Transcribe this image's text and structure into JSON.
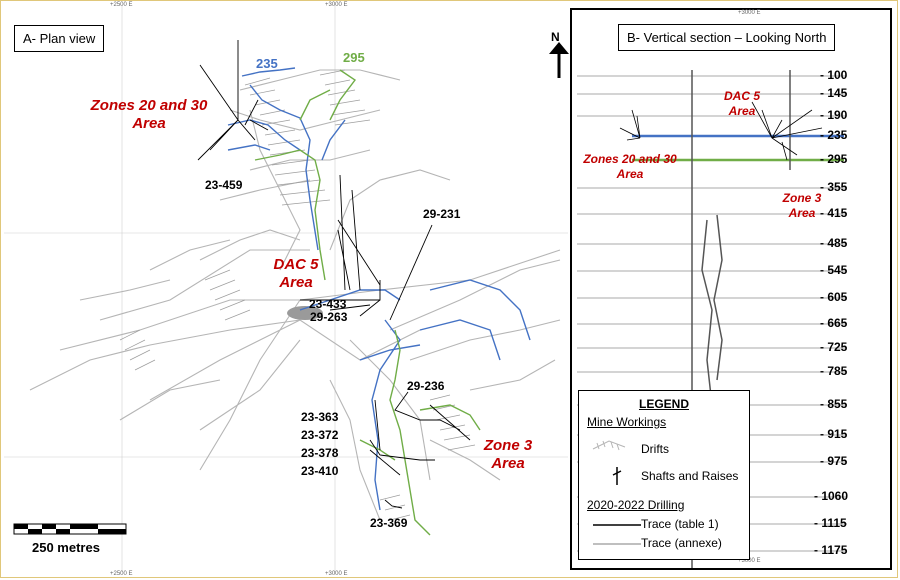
{
  "plan_view": {
    "title": "A- Plan view",
    "grid_labels": [
      "+2500 E",
      "+3000 E"
    ],
    "level_labels": [
      {
        "text": "235",
        "color": "#4472c4"
      },
      {
        "text": "295",
        "color": "#70ad47"
      }
    ],
    "areas": [
      "Zones 20 and 30",
      "Area",
      "DAC 5",
      "Area",
      "Zone 3",
      "Area"
    ],
    "drill_holes": [
      "23-459",
      "29-231",
      "23-433",
      "29-263",
      "29-236",
      "23-363",
      "23-372",
      "23-378",
      "23-410",
      "23-369"
    ],
    "scale_bar": "250 metres"
  },
  "section_view": {
    "title": "B- Vertical section – Looking North",
    "grid_label": "+3000 E",
    "north_arrow": "N",
    "levels": [
      "- 100",
      "- 145",
      "- 190",
      "- 235",
      "- 295",
      "- 355",
      "- 415",
      "- 485",
      "- 545",
      "- 605",
      "- 665",
      "- 725",
      "- 785",
      "- 855",
      "- 915",
      "- 975",
      "- 1060",
      "- 1115",
      "- 1175"
    ],
    "areas": [
      "DAC 5",
      "Area",
      "Zones 20 and 30",
      "Area",
      "Zone 3",
      "Area"
    ]
  },
  "legend": {
    "title": "LEGEND",
    "mine_workings": "Mine Workings",
    "drifts": "Drifts",
    "shafts": "Shafts and Raises",
    "drilling": "2020-2022 Drilling",
    "trace_table": "Trace (table 1)",
    "trace_annexe": "Trace (annexe)"
  },
  "colors": {
    "level_235": "#4472c4",
    "level_295": "#70ad47",
    "area_label": "#c00000",
    "workings": "#b5b5b5"
  }
}
